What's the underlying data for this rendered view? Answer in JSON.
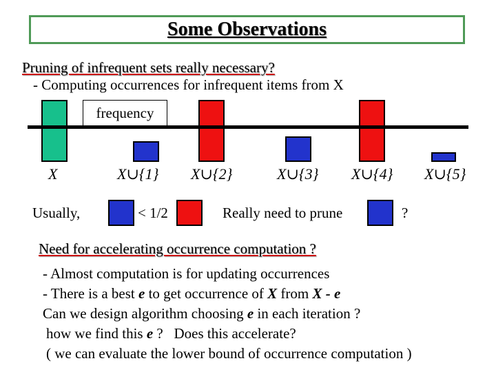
{
  "slide": {
    "title": "Some Observations"
  },
  "intro": {
    "question": "Pruning of infrequent sets really necessary?",
    "point_prefix": "- Computing occurrences for infrequent items from ",
    "point_var": "X"
  },
  "diagram": {
    "threshold_label": "frequency",
    "colors": {
      "frequent": "#17c08c",
      "infrequent_small": "#2233cc",
      "infrequent_large": "#ee1111",
      "threshold": "#000000"
    },
    "bars": [
      {
        "label": "X",
        "color": "green"
      },
      {
        "label": "X∪{1}",
        "color": "blue"
      },
      {
        "label": "X∪{2}",
        "color": "red"
      },
      {
        "label": "X∪{3}",
        "color": "blue"
      },
      {
        "label": "X∪{4}",
        "color": "red"
      },
      {
        "label": "X∪{5}",
        "color": "blue"
      }
    ],
    "legend": {
      "usually": "Usually,",
      "ratio": "< 1/2",
      "really": "Really need to prune",
      "question_mark": "?"
    }
  },
  "second": {
    "question": "Need for accelerating occurrence computation ?",
    "line1": "- Almost computation is for updating occurrences",
    "line2_a": "- There is a best ",
    "line2_e": "e",
    "line2_b": " to get occurrence of ",
    "line2_x": "X",
    "line2_c": " from ",
    "line2_xe": "X - e",
    "line3_a": "Can we design algorithm choosing ",
    "line3_e": "e",
    "line3_b": " in each iteration ?",
    "line4_a": "how we find this ",
    "line4_e": "e",
    "line4_b": " ?   Does this accelerate?",
    "line5": "( we can evaluate the lower bound of occurrence computation )"
  }
}
